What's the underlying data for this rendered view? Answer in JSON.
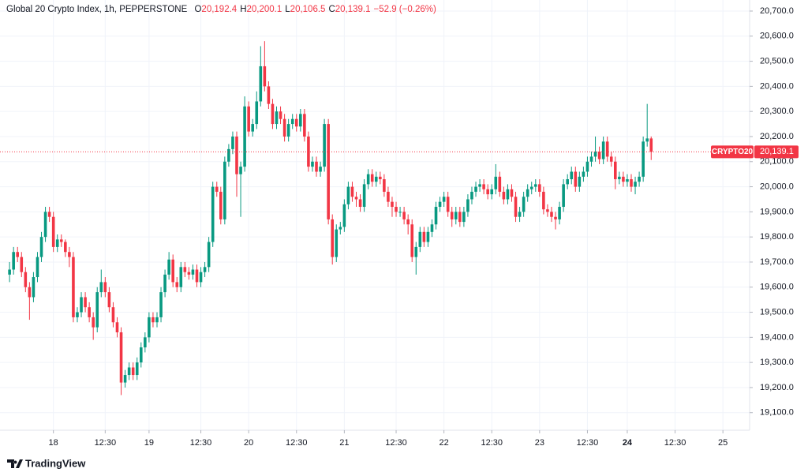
{
  "chart_data": {
    "type": "candlestick",
    "title": "Global 20 Crypto Index, 1h, PEPPERSTONE",
    "header_fields": [
      {
        "key": "O",
        "value": "20,192.4"
      },
      {
        "key": "H",
        "value": "20,200.1"
      },
      {
        "key": "L",
        "value": "20,106.5"
      },
      {
        "key": "C",
        "value": "20,139.1"
      }
    ],
    "change": "−52.9 (−0.26%)",
    "up_color": "#089981",
    "down_color": "#f23645",
    "ylim": [
      19030,
      20744
    ],
    "yticks": [
      {
        "value": 19100,
        "label": "19,100.0"
      },
      {
        "value": 19200,
        "label": "19,200.0"
      },
      {
        "value": 19300,
        "label": "19,300.0"
      },
      {
        "value": 19400,
        "label": "19,400.0"
      },
      {
        "value": 19500,
        "label": "19,500.0"
      },
      {
        "value": 19600,
        "label": "19,600.0"
      },
      {
        "value": 19700,
        "label": "19,700.0"
      },
      {
        "value": 19800,
        "label": "19,800.0"
      },
      {
        "value": 19900,
        "label": "19,900.0"
      },
      {
        "value": 20000,
        "label": "20,000.0"
      },
      {
        "value": 20100,
        "label": "20,100.0"
      },
      {
        "value": 20200,
        "label": "20,200.0"
      },
      {
        "value": 20300,
        "label": "20,300.0"
      },
      {
        "value": 20400,
        "label": "20,400.0"
      },
      {
        "value": 20500,
        "label": "20,500.0"
      },
      {
        "value": 20600,
        "label": "20,600.0"
      },
      {
        "value": 20700,
        "label": "20,700.0"
      }
    ],
    "xlim": [
      -2.4,
      185.7
    ],
    "xticks": [
      {
        "value": 11,
        "label": "18"
      },
      {
        "value": 24,
        "label": "12:30"
      },
      {
        "value": 35,
        "label": "19"
      },
      {
        "value": 48,
        "label": "12:30"
      },
      {
        "value": 60,
        "label": "20"
      },
      {
        "value": 72,
        "label": "12:30"
      },
      {
        "value": 84,
        "label": "21"
      },
      {
        "value": 97,
        "label": "12:30"
      },
      {
        "value": 109,
        "label": "22"
      },
      {
        "value": 121,
        "label": "12:30"
      },
      {
        "value": 133,
        "label": "23"
      },
      {
        "value": 145,
        "label": "12:30"
      },
      {
        "value": 155,
        "label": "24",
        "bold": true
      },
      {
        "value": 167,
        "label": "12:30"
      },
      {
        "value": 179,
        "label": "25"
      }
    ],
    "grid": true,
    "last_price": {
      "symbol": "CRYPTO20",
      "value": 20139.1,
      "label": "20,139.1"
    },
    "brand": "TradingView",
    "ohlc": [
      [
        19650,
        19700,
        19620,
        19670
      ],
      [
        19670,
        19760,
        19650,
        19740
      ],
      [
        19740,
        19760,
        19700,
        19720
      ],
      [
        19720,
        19740,
        19640,
        19660
      ],
      [
        19660,
        19680,
        19580,
        19600
      ],
      [
        19600,
        19620,
        19470,
        19560
      ],
      [
        19560,
        19660,
        19540,
        19640
      ],
      [
        19640,
        19740,
        19620,
        19720
      ],
      [
        19720,
        19820,
        19700,
        19800
      ],
      [
        19800,
        19920,
        19780,
        19900
      ],
      [
        19900,
        19920,
        19860,
        19880
      ],
      [
        19880,
        19900,
        19740,
        19760
      ],
      [
        19760,
        19810,
        19740,
        19790
      ],
      [
        19790,
        19810,
        19760,
        19780
      ],
      [
        19780,
        19790,
        19720,
        19740
      ],
      [
        19740,
        19760,
        19680,
        19720
      ],
      [
        19720,
        19740,
        19460,
        19480
      ],
      [
        19480,
        19520,
        19460,
        19500
      ],
      [
        19500,
        19580,
        19480,
        19560
      ],
      [
        19560,
        19580,
        19500,
        19520
      ],
      [
        19520,
        19540,
        19460,
        19480
      ],
      [
        19480,
        19500,
        19390,
        19440
      ],
      [
        19440,
        19600,
        19420,
        19580
      ],
      [
        19580,
        19670,
        19560,
        19620
      ],
      [
        19620,
        19640,
        19560,
        19580
      ],
      [
        19580,
        19600,
        19500,
        19520
      ],
      [
        19520,
        19540,
        19440,
        19460
      ],
      [
        19460,
        19480,
        19400,
        19420
      ],
      [
        19420,
        19440,
        19170,
        19220
      ],
      [
        19220,
        19270,
        19200,
        19250
      ],
      [
        19250,
        19300,
        19230,
        19280
      ],
      [
        19280,
        19300,
        19230,
        19250
      ],
      [
        19250,
        19320,
        19230,
        19300
      ],
      [
        19300,
        19380,
        19280,
        19360
      ],
      [
        19360,
        19420,
        19340,
        19400
      ],
      [
        19400,
        19500,
        19380,
        19480
      ],
      [
        19480,
        19500,
        19440,
        19460
      ],
      [
        19460,
        19500,
        19440,
        19480
      ],
      [
        19480,
        19600,
        19460,
        19580
      ],
      [
        19580,
        19670,
        19560,
        19650
      ],
      [
        19650,
        19740,
        19630,
        19710
      ],
      [
        19710,
        19730,
        19600,
        19620
      ],
      [
        19620,
        19640,
        19580,
        19600
      ],
      [
        19600,
        19700,
        19580,
        19680
      ],
      [
        19680,
        19700,
        19640,
        19660
      ],
      [
        19660,
        19680,
        19630,
        19650
      ],
      [
        19650,
        19690,
        19630,
        19670
      ],
      [
        19670,
        19690,
        19600,
        19620
      ],
      [
        19620,
        19680,
        19600,
        19660
      ],
      [
        19660,
        19700,
        19640,
        19680
      ],
      [
        19680,
        19800,
        19660,
        19780
      ],
      [
        19780,
        20020,
        19760,
        20000
      ],
      [
        20000,
        20020,
        19960,
        19980
      ],
      [
        19980,
        20000,
        19850,
        19870
      ],
      [
        19870,
        20120,
        19850,
        20100
      ],
      [
        20100,
        20170,
        20080,
        20150
      ],
      [
        20150,
        20220,
        20130,
        20200
      ],
      [
        20200,
        20220,
        19960,
        20050
      ],
      [
        20050,
        20100,
        19880,
        20080
      ],
      [
        20080,
        20360,
        20060,
        20320
      ],
      [
        20320,
        20340,
        20200,
        20220
      ],
      [
        20220,
        20270,
        20200,
        20250
      ],
      [
        20250,
        20380,
        20230,
        20340
      ],
      [
        20340,
        20560,
        20320,
        20480
      ],
      [
        20480,
        20580,
        20380,
        20400
      ],
      [
        20400,
        20420,
        20310,
        20330
      ],
      [
        20330,
        20350,
        20230,
        20250
      ],
      [
        20250,
        20320,
        20230,
        20300
      ],
      [
        20300,
        20320,
        20250,
        20270
      ],
      [
        20270,
        20290,
        20180,
        20200
      ],
      [
        20200,
        20270,
        20180,
        20250
      ],
      [
        20250,
        20290,
        20230,
        20270
      ],
      [
        20270,
        20290,
        20220,
        20240
      ],
      [
        20240,
        20310,
        20220,
        20290
      ],
      [
        20290,
        20310,
        20180,
        20200
      ],
      [
        20200,
        20220,
        20060,
        20080
      ],
      [
        20080,
        20120,
        20060,
        20100
      ],
      [
        20100,
        20120,
        20040,
        20060
      ],
      [
        20060,
        20100,
        20040,
        20080
      ],
      [
        20080,
        20270,
        20060,
        20250
      ],
      [
        20250,
        20270,
        19850,
        19870
      ],
      [
        19870,
        19890,
        19690,
        19720
      ],
      [
        19720,
        19850,
        19700,
        19830
      ],
      [
        19830,
        19860,
        19810,
        19840
      ],
      [
        19840,
        19950,
        19820,
        19930
      ],
      [
        19930,
        20020,
        19910,
        20000
      ],
      [
        20000,
        20020,
        19940,
        19960
      ],
      [
        19960,
        19980,
        19920,
        19950
      ],
      [
        19950,
        19970,
        19900,
        19920
      ],
      [
        19920,
        20030,
        19900,
        20010
      ],
      [
        20010,
        20070,
        19990,
        20050
      ],
      [
        20050,
        20070,
        20000,
        20020
      ],
      [
        20020,
        20060,
        20000,
        20040
      ],
      [
        20040,
        20060,
        20010,
        20030
      ],
      [
        20030,
        20050,
        19960,
        19980
      ],
      [
        19980,
        20000,
        19920,
        19940
      ],
      [
        19940,
        19960,
        19880,
        19920
      ],
      [
        19920,
        19940,
        19880,
        19900
      ],
      [
        19900,
        19920,
        19880,
        19900
      ],
      [
        19900,
        19920,
        19850,
        19870
      ],
      [
        19870,
        19890,
        19810,
        19850
      ],
      [
        19850,
        19870,
        19700,
        19720
      ],
      [
        19720,
        19780,
        19650,
        19760
      ],
      [
        19760,
        19840,
        19740,
        19820
      ],
      [
        19820,
        19840,
        19760,
        19780
      ],
      [
        19780,
        19840,
        19760,
        19820
      ],
      [
        19820,
        19870,
        19800,
        19850
      ],
      [
        19850,
        19940,
        19830,
        19920
      ],
      [
        19920,
        19960,
        19900,
        19940
      ],
      [
        19940,
        19980,
        19920,
        19960
      ],
      [
        19960,
        19980,
        19880,
        19900
      ],
      [
        19900,
        19920,
        19840,
        19870
      ],
      [
        19870,
        19920,
        19850,
        19900
      ],
      [
        19900,
        19920,
        19840,
        19860
      ],
      [
        19860,
        19920,
        19840,
        19900
      ],
      [
        19900,
        19970,
        19880,
        19950
      ],
      [
        19950,
        20000,
        19930,
        19980
      ],
      [
        19980,
        20020,
        19960,
        20000
      ],
      [
        20000,
        20030,
        19980,
        20010
      ],
      [
        20010,
        20030,
        19970,
        19990
      ],
      [
        19990,
        20010,
        19950,
        19970
      ],
      [
        19970,
        20010,
        19950,
        19990
      ],
      [
        19990,
        20090,
        19970,
        20040
      ],
      [
        20040,
        20060,
        19960,
        19980
      ],
      [
        19980,
        20000,
        19930,
        19950
      ],
      [
        19950,
        20010,
        19930,
        19990
      ],
      [
        19990,
        20010,
        19940,
        19960
      ],
      [
        19960,
        19980,
        19860,
        19880
      ],
      [
        19880,
        19920,
        19860,
        19900
      ],
      [
        19900,
        19980,
        19880,
        19960
      ],
      [
        19960,
        20010,
        19940,
        19990
      ],
      [
        19990,
        20020,
        19970,
        20000
      ],
      [
        20000,
        20030,
        19980,
        20010
      ],
      [
        20010,
        20030,
        19960,
        19980
      ],
      [
        19980,
        20000,
        19890,
        19910
      ],
      [
        19910,
        19930,
        19880,
        19900
      ],
      [
        19900,
        19920,
        19860,
        19880
      ],
      [
        19880,
        19900,
        19830,
        19870
      ],
      [
        19870,
        19940,
        19850,
        19920
      ],
      [
        19920,
        20030,
        19900,
        20010
      ],
      [
        20010,
        20050,
        19990,
        20030
      ],
      [
        20030,
        20080,
        20010,
        20060
      ],
      [
        20060,
        20080,
        19980,
        20000
      ],
      [
        20000,
        20060,
        19980,
        20040
      ],
      [
        20040,
        20080,
        20020,
        20060
      ],
      [
        20060,
        20120,
        20040,
        20100
      ],
      [
        20100,
        20140,
        20080,
        20120
      ],
      [
        20120,
        20200,
        20100,
        20140
      ],
      [
        20140,
        20160,
        20090,
        20110
      ],
      [
        20110,
        20200,
        20090,
        20180
      ],
      [
        20180,
        20200,
        20100,
        20120
      ],
      [
        20120,
        20140,
        20080,
        20100
      ],
      [
        20100,
        20120,
        19990,
        20030
      ],
      [
        20030,
        20060,
        20010,
        20040
      ],
      [
        20040,
        20060,
        20000,
        20020
      ],
      [
        20020,
        20050,
        20000,
        20030
      ],
      [
        20030,
        20050,
        19980,
        20000
      ],
      [
        20000,
        20040,
        19970,
        20020
      ],
      [
        20020,
        20060,
        20000,
        20040
      ],
      [
        20040,
        20200,
        20020,
        20180
      ],
      [
        20180,
        20330,
        20160,
        20192.4
      ],
      [
        20192.4,
        20200.1,
        20106.5,
        20139.1
      ]
    ]
  }
}
